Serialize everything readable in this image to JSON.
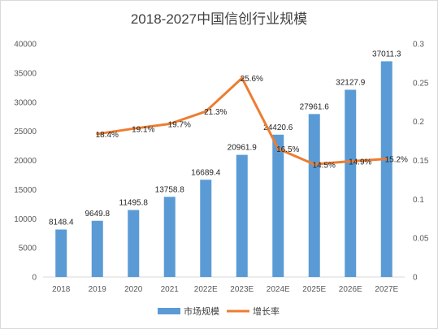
{
  "chart_data": {
    "type": "bar",
    "title": "2018-2027中国信创行业规模",
    "categories": [
      "2018",
      "2019",
      "2020",
      "2021",
      "2022E",
      "2023E",
      "2024E",
      "2025E",
      "2026E",
      "2027E"
    ],
    "series": [
      {
        "name": "市场规模",
        "type": "bar",
        "axis": "left",
        "color": "#5b9bd5",
        "values": [
          8148.4,
          9649.8,
          11495.8,
          13758.8,
          16689.4,
          20961.9,
          24420.6,
          27961.6,
          32127.9,
          37011.3
        ],
        "labels": [
          "8148.4",
          "9649.8",
          "11495.8",
          "13758.8",
          "16689.4",
          "20961.9",
          "24420.6",
          "27961.6",
          "32127.9",
          "37011.3"
        ]
      },
      {
        "name": "增长率",
        "type": "line",
        "axis": "right",
        "color": "#ed7d31",
        "values": [
          null,
          0.184,
          0.191,
          0.197,
          0.213,
          0.256,
          0.165,
          0.145,
          0.149,
          0.152
        ],
        "labels": [
          "",
          "18.4%",
          "19.1%",
          "19.7%",
          "21.3%",
          "25.6%",
          "16.5%",
          "14.5%",
          "14.9%",
          "15.2%"
        ]
      }
    ],
    "y_left": {
      "ylim": [
        0,
        40000
      ],
      "ticks": [
        "0",
        "5000",
        "10000",
        "15000",
        "20000",
        "25000",
        "30000",
        "35000",
        "40000"
      ]
    },
    "y_right": {
      "ylim": [
        0,
        0.3
      ],
      "ticks": [
        "0",
        "0.05",
        "0.1",
        "0.15",
        "0.2",
        "0.25",
        "0.3"
      ]
    },
    "grid": false,
    "legend": "bottom"
  }
}
